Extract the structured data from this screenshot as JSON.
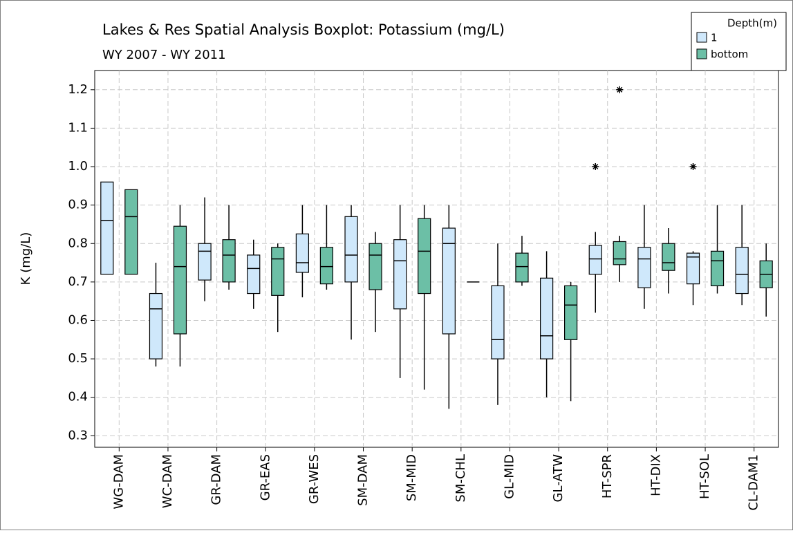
{
  "chart_data": {
    "type": "boxplot",
    "title": "Lakes & Res Spatial Analysis Boxplot: Potassium (mg/L)",
    "subtitle": "WY 2007 - WY 2011",
    "ylabel": "K (mg/L)",
    "legend_title": "Depth(m)",
    "legend_position": "upper right",
    "grid": true,
    "ylim": [
      0.27,
      1.25
    ],
    "yticks": [
      0.3,
      0.4,
      0.5,
      0.6,
      0.7,
      0.8,
      0.9,
      {
        "value": 1,
        "label": "1.0"
      },
      1.1,
      1.2
    ],
    "categories": [
      "WG-DAM",
      "WC-DAM",
      "GR-DAM",
      "GR-EAS",
      "GR-WES",
      "SM-DAM",
      "SM-MID",
      "SM-CHL",
      "GL-MID",
      "GL-ATW",
      "HT-SPR",
      "HT-DIX",
      "HT-SOL",
      "CL-DAM1"
    ],
    "series": [
      {
        "name": "1",
        "color": "#cfe8fb",
        "data": [
          {
            "min": 0.72,
            "q1": 0.72,
            "median": 0.86,
            "q3": 0.96,
            "max": 0.96
          },
          {
            "min": 0.48,
            "q1": 0.5,
            "median": 0.63,
            "q3": 0.67,
            "max": 0.75
          },
          {
            "min": 0.65,
            "q1": 0.705,
            "median": 0.78,
            "q3": 0.8,
            "max": 0.92
          },
          {
            "min": 0.63,
            "q1": 0.67,
            "median": 0.735,
            "q3": 0.77,
            "max": 0.81
          },
          {
            "min": 0.66,
            "q1": 0.725,
            "median": 0.75,
            "q3": 0.825,
            "max": 0.9
          },
          {
            "min": 0.55,
            "q1": 0.7,
            "median": 0.77,
            "q3": 0.87,
            "max": 0.9
          },
          {
            "min": 0.45,
            "q1": 0.63,
            "median": 0.755,
            "q3": 0.81,
            "max": 0.9
          },
          {
            "min": 0.37,
            "q1": 0.565,
            "median": 0.8,
            "q3": 0.84,
            "max": 0.9
          },
          {
            "min": 0.38,
            "q1": 0.5,
            "median": 0.55,
            "q3": 0.69,
            "max": 0.8
          },
          {
            "min": 0.4,
            "q1": 0.5,
            "median": 0.56,
            "q3": 0.71,
            "max": 0.78
          },
          {
            "min": 0.62,
            "q1": 0.72,
            "median": 0.76,
            "q3": 0.795,
            "max": 0.83,
            "outliers": [
              1.0
            ]
          },
          {
            "min": 0.63,
            "q1": 0.685,
            "median": 0.76,
            "q3": 0.79,
            "max": 0.9
          },
          {
            "min": 0.64,
            "q1": 0.695,
            "median": 0.765,
            "q3": 0.775,
            "max": 0.78,
            "outliers": [
              1.0
            ]
          },
          {
            "min": 0.64,
            "q1": 0.67,
            "median": 0.72,
            "q3": 0.79,
            "max": 0.9
          }
        ]
      },
      {
        "name": "bottom",
        "color": "#6cbfa6",
        "data": [
          {
            "min": 0.72,
            "q1": 0.72,
            "median": 0.87,
            "q3": 0.94,
            "max": 0.94
          },
          {
            "min": 0.48,
            "q1": 0.565,
            "median": 0.74,
            "q3": 0.845,
            "max": 0.9
          },
          {
            "min": 0.68,
            "q1": 0.7,
            "median": 0.77,
            "q3": 0.81,
            "max": 0.9
          },
          {
            "min": 0.57,
            "q1": 0.665,
            "median": 0.76,
            "q3": 0.79,
            "max": 0.8
          },
          {
            "min": 0.68,
            "q1": 0.695,
            "median": 0.74,
            "q3": 0.79,
            "max": 0.9
          },
          {
            "min": 0.57,
            "q1": 0.68,
            "median": 0.77,
            "q3": 0.8,
            "max": 0.83
          },
          {
            "min": 0.42,
            "q1": 0.67,
            "median": 0.78,
            "q3": 0.865,
            "max": 0.9
          },
          {
            "min": 0.7,
            "q1": 0.7,
            "median": 0.7,
            "q3": 0.7,
            "max": 0.7
          },
          {
            "min": 0.69,
            "q1": 0.7,
            "median": 0.74,
            "q3": 0.775,
            "max": 0.82
          },
          {
            "min": 0.39,
            "q1": 0.55,
            "median": 0.64,
            "q3": 0.69,
            "max": 0.7
          },
          {
            "min": 0.7,
            "q1": 0.745,
            "median": 0.76,
            "q3": 0.805,
            "max": 0.82,
            "outliers": [
              1.2
            ]
          },
          {
            "min": 0.67,
            "q1": 0.73,
            "median": 0.75,
            "q3": 0.8,
            "max": 0.84
          },
          {
            "min": 0.67,
            "q1": 0.69,
            "median": 0.755,
            "q3": 0.78,
            "max": 0.9
          },
          {
            "min": 0.61,
            "q1": 0.685,
            "median": 0.72,
            "q3": 0.755,
            "max": 0.8
          }
        ]
      }
    ]
  }
}
